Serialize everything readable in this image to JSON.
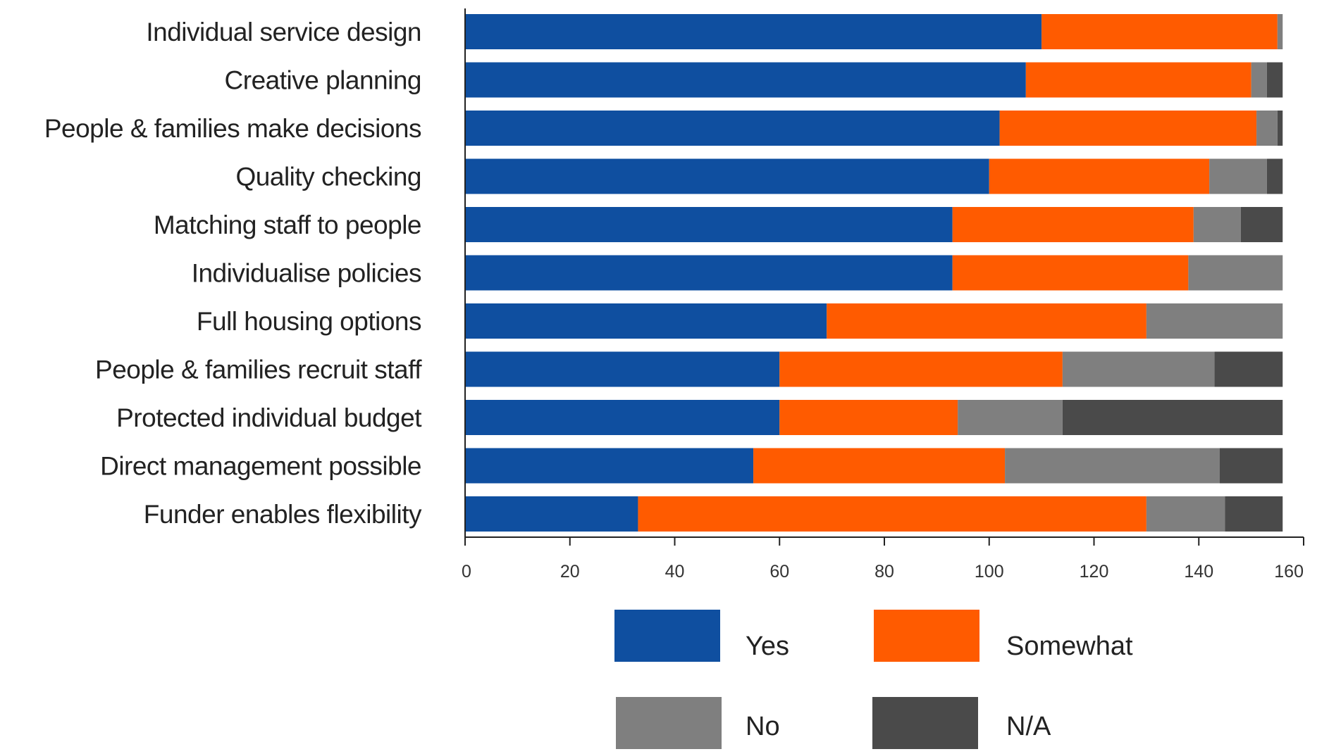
{
  "chart_data": {
    "type": "bar",
    "orientation": "horizontal",
    "stacked": true,
    "categories": [
      "Individual service design",
      "Creative planning",
      "People & families make decisions",
      "Quality checking",
      "Matching staff to people",
      "Individualise policies",
      "Full housing options",
      "People & families recruit staff",
      "Protected individual budget",
      "Direct management possible",
      "Funder enables flexibility"
    ],
    "series": [
      {
        "name": "Yes",
        "color": "#0f4fa0",
        "values": [
          110,
          107,
          102,
          100,
          93,
          93,
          69,
          60,
          60,
          55,
          33
        ]
      },
      {
        "name": "Somewhat",
        "color": "#ff5b00",
        "values": [
          45,
          43,
          49,
          42,
          46,
          45,
          61,
          54,
          34,
          48,
          97
        ]
      },
      {
        "name": "No",
        "color": "#7f7f7f",
        "values": [
          1,
          3,
          4,
          11,
          9,
          18,
          26,
          29,
          20,
          41,
          15
        ]
      },
      {
        "name": "N/A",
        "color": "#4a4a4a",
        "values": [
          0,
          3,
          1,
          3,
          8,
          0,
          0,
          13,
          42,
          12,
          11
        ]
      }
    ],
    "xlim": [
      0,
      160
    ],
    "xticks": [
      "0",
      "20",
      "40",
      "60",
      "80",
      "100",
      "120",
      "140",
      "160"
    ],
    "grid": false,
    "legend_position": "bottom"
  }
}
